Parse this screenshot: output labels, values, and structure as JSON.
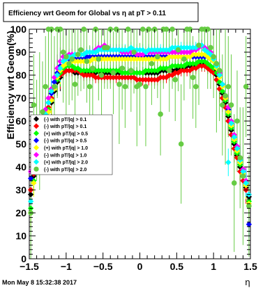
{
  "chart_data": {
    "type": "scatter",
    "title": "Efficiency wrt Geom for Global vs   η at pT > 0.11",
    "xlabel": "η",
    "ylabel": "Efficiency wrt Geom(%)",
    "xlim": [
      -1.5,
      1.5
    ],
    "ylim": [
      0,
      100
    ],
    "x_ticks": [
      "−1.5",
      "−1",
      "−0.5",
      "0",
      "0.5",
      "1",
      "1.5"
    ],
    "y_ticks": [
      "0",
      "10",
      "20",
      "30",
      "40",
      "50",
      "60",
      "70",
      "80",
      "90",
      "100"
    ],
    "grid": false,
    "legend_position": "center-left",
    "timestamp": "Mon May  8 15:32:38 2017",
    "series": [
      {
        "name": "(-) with pT/|q| > 0.1",
        "color": "#000000",
        "x": [
          -1.48,
          -1.44,
          -1.4,
          -1.36,
          -1.32,
          -1.28,
          -1.24,
          -1.2,
          -1.16,
          -1.12,
          -1.08,
          -1.04,
          -1,
          -0.96,
          -0.92,
          -0.88,
          -0.84,
          -0.8,
          -0.76,
          -0.72,
          -0.68,
          -0.64,
          -0.6,
          -0.56,
          -0.52,
          -0.48,
          -0.44,
          -0.4,
          -0.36,
          -0.32,
          -0.28,
          -0.24,
          -0.2,
          -0.16,
          -0.12,
          -0.08,
          -0.04,
          0,
          0.04,
          0.08,
          0.12,
          0.16,
          0.2,
          0.24,
          0.28,
          0.32,
          0.36,
          0.4,
          0.44,
          0.48,
          0.52,
          0.56,
          0.6,
          0.64,
          0.68,
          0.72,
          0.76,
          0.8,
          0.84,
          0.88,
          0.92,
          0.96,
          1,
          1.04,
          1.08,
          1.12,
          1.16,
          1.2,
          1.24,
          1.28,
          1.32,
          1.36,
          1.4,
          1.44,
          1.48
        ],
        "y": [
          28,
          36,
          45,
          52,
          56,
          60,
          64,
          68,
          73,
          77,
          79,
          81,
          82,
          82,
          82,
          81,
          81,
          81,
          81,
          81,
          81,
          81,
          81,
          82,
          81,
          81,
          81,
          81,
          81,
          81,
          81,
          81,
          81,
          81,
          81,
          81,
          81,
          81,
          81,
          81,
          81,
          81,
          81,
          81,
          82,
          82,
          82,
          82,
          82,
          82,
          83,
          83,
          83,
          84,
          84,
          84,
          84,
          85,
          85,
          85,
          84,
          83,
          82,
          80,
          76,
          72,
          68,
          62,
          56,
          50,
          45,
          40,
          36,
          31,
          27
        ]
      },
      {
        "name": "(-) with pT/|q| > 0.1",
        "color": "#ff0000",
        "x": [
          -1.48,
          -1.44,
          -1.4,
          -1.36,
          -1.32,
          -1.28,
          -1.24,
          -1.2,
          -1.16,
          -1.12,
          -1.08,
          -1.04,
          -1,
          -0.96,
          -0.92,
          -0.88,
          -0.84,
          -0.8,
          -0.76,
          -0.72,
          -0.68,
          -0.64,
          -0.6,
          -0.56,
          -0.52,
          -0.48,
          -0.44,
          -0.4,
          -0.36,
          -0.32,
          -0.28,
          -0.24,
          -0.2,
          -0.16,
          -0.12,
          -0.08,
          -0.04,
          0,
          0.04,
          0.08,
          0.12,
          0.16,
          0.2,
          0.24,
          0.28,
          0.32,
          0.36,
          0.4,
          0.44,
          0.48,
          0.52,
          0.56,
          0.6,
          0.64,
          0.68,
          0.72,
          0.76,
          0.8,
          0.84,
          0.88,
          0.92,
          0.96,
          1,
          1.04,
          1.08,
          1.12,
          1.16,
          1.2,
          1.24,
          1.28,
          1.32,
          1.36,
          1.4,
          1.44,
          1.48
        ],
        "y": [
          30,
          37,
          46,
          53,
          57,
          61,
          66,
          70,
          74,
          78,
          80,
          81,
          82,
          82,
          82,
          82,
          82,
          81,
          80,
          80,
          80,
          80,
          79,
          79,
          79,
          79,
          79,
          79,
          79,
          79,
          79,
          79,
          79,
          79,
          79,
          79,
          78,
          78,
          78,
          78,
          78,
          78,
          78,
          78,
          79,
          79,
          79,
          80,
          80,
          81,
          81,
          82,
          82,
          82,
          82,
          83,
          83,
          84,
          84,
          84,
          83,
          82,
          81,
          78,
          74,
          70,
          66,
          60,
          54,
          48,
          44,
          38,
          34,
          30,
          28
        ]
      },
      {
        "name": "(+) with pT/|q| > 0.5",
        "color": "#00ff00",
        "x": [
          -1.48,
          -1.44,
          -1.4,
          -1.36,
          -1.32,
          -1.28,
          -1.24,
          -1.2,
          -1.16,
          -1.12,
          -1.08,
          -1.04,
          -1,
          -0.96,
          -0.92,
          -0.88,
          -0.84,
          -0.8,
          -0.76,
          -0.72,
          -0.68,
          -0.64,
          -0.6,
          -0.56,
          -0.52,
          -0.48,
          -0.44,
          -0.4,
          -0.36,
          -0.32,
          -0.28,
          -0.24,
          -0.2,
          -0.16,
          -0.12,
          -0.08,
          -0.04,
          0,
          0.04,
          0.08,
          0.12,
          0.16,
          0.2,
          0.24,
          0.28,
          0.32,
          0.36,
          0.4,
          0.44,
          0.48,
          0.52,
          0.56,
          0.6,
          0.64,
          0.68,
          0.72,
          0.76,
          0.8,
          0.84,
          0.88,
          0.92,
          0.96,
          1,
          1.04,
          1.08,
          1.12,
          1.16,
          1.2,
          1.24,
          1.28,
          1.32,
          1.36,
          1.4,
          1.44,
          1.48
        ],
        "y": [
          22,
          34,
          44,
          50,
          55,
          60,
          65,
          69,
          74,
          78,
          81,
          83,
          84,
          84,
          84,
          83,
          83,
          82,
          82,
          82,
          82,
          82,
          82,
          82,
          82,
          82,
          82,
          82,
          82,
          82,
          82,
          81,
          81,
          81,
          81,
          81,
          81,
          81,
          81,
          82,
          82,
          82,
          82,
          82,
          83,
          83,
          83,
          83,
          84,
          84,
          84,
          84,
          84,
          85,
          85,
          85,
          85,
          86,
          86,
          86,
          85,
          84,
          83,
          81,
          77,
          73,
          69,
          63,
          57,
          51,
          46,
          41,
          37,
          32,
          25
        ]
      },
      {
        "name": "(-) with pT/|q| > 0.5",
        "color": "#0000ff",
        "x": [
          -1.48,
          -1.44,
          -1.4,
          -1.36,
          -1.32,
          -1.28,
          -1.24,
          -1.2,
          -1.16,
          -1.12,
          -1.08,
          -1.04,
          -1,
          -0.96,
          -0.92,
          -0.88,
          -0.84,
          -0.8,
          -0.76,
          -0.72,
          -0.68,
          -0.64,
          -0.6,
          -0.56,
          -0.52,
          -0.48,
          -0.44,
          -0.4,
          -0.36,
          -0.32,
          -0.28,
          -0.24,
          -0.2,
          -0.16,
          -0.12,
          -0.08,
          -0.04,
          0,
          0.04,
          0.08,
          0.12,
          0.16,
          0.2,
          0.24,
          0.28,
          0.32,
          0.36,
          0.4,
          0.44,
          0.48,
          0.52,
          0.56,
          0.6,
          0.64,
          0.68,
          0.72,
          0.76,
          0.8,
          0.84,
          0.88,
          0.92,
          0.96,
          1,
          1.04,
          1.08,
          1.12,
          1.16,
          1.2,
          1.24,
          1.28,
          1.32,
          1.36,
          1.4,
          1.44,
          1.48
        ],
        "y": [
          35,
          40,
          49,
          55,
          59,
          64,
          68,
          72,
          77,
          81,
          84,
          86,
          87,
          87,
          87,
          87,
          87,
          87,
          87,
          88,
          88,
          88,
          88,
          88,
          88,
          88,
          88,
          88,
          88,
          88,
          88,
          88,
          88,
          88,
          88,
          88,
          88,
          88,
          88,
          88,
          88,
          88,
          88,
          88,
          88,
          88,
          88,
          88,
          88,
          88,
          88,
          88,
          88,
          88,
          88,
          88,
          88,
          88,
          88,
          88,
          88,
          87,
          86,
          84,
          80,
          76,
          71,
          65,
          59,
          53,
          48,
          43,
          38,
          33,
          15
        ]
      },
      {
        "name": "(+) with pT/|q| > 1.0",
        "color": "#ffff00",
        "x": [
          -1.48,
          -1.44,
          -1.4,
          -1.36,
          -1.32,
          -1.28,
          -1.24,
          -1.2,
          -1.16,
          -1.12,
          -1.08,
          -1.04,
          -1,
          -0.96,
          -0.92,
          -0.88,
          -0.84,
          -0.8,
          -0.76,
          -0.72,
          -0.68,
          -0.64,
          -0.6,
          -0.56,
          -0.52,
          -0.48,
          -0.44,
          -0.4,
          -0.36,
          -0.32,
          -0.28,
          -0.24,
          -0.2,
          -0.16,
          -0.12,
          -0.08,
          -0.04,
          0,
          0.04,
          0.08,
          0.12,
          0.16,
          0.2,
          0.24,
          0.28,
          0.32,
          0.36,
          0.4,
          0.44,
          0.48,
          0.52,
          0.56,
          0.6,
          0.64,
          0.68,
          0.72,
          0.76,
          0.8,
          0.84,
          0.88,
          0.92,
          0.96,
          1,
          1.04,
          1.08,
          1.12,
          1.16,
          1.2,
          1.24,
          1.28,
          1.32,
          1.36,
          1.4,
          1.44,
          1.48
        ],
        "y": [
          20,
          33,
          42,
          49,
          54,
          59,
          64,
          69,
          74,
          79,
          82,
          84,
          85,
          85,
          86,
          86,
          86,
          86,
          86,
          86,
          86,
          87,
          87,
          87,
          87,
          87,
          87,
          87,
          87,
          87,
          87,
          87,
          87,
          87,
          87,
          87,
          87,
          87,
          87,
          87,
          87,
          87,
          87,
          87,
          87,
          87,
          87,
          88,
          88,
          88,
          88,
          88,
          88,
          88,
          88,
          89,
          89,
          89,
          89,
          89,
          88,
          87,
          86,
          83,
          79,
          75,
          70,
          64,
          58,
          52,
          47,
          42,
          37,
          32,
          24
        ]
      },
      {
        "name": "(-) with pT/|q| > 1.0",
        "color": "#ff00ff",
        "x": [
          -1.48,
          -1.44,
          -1.4,
          -1.36,
          -1.32,
          -1.28,
          -1.24,
          -1.2,
          -1.16,
          -1.12,
          -1.08,
          -1.04,
          -1,
          -0.96,
          -0.92,
          -0.88,
          -0.84,
          -0.8,
          -0.76,
          -0.72,
          -0.68,
          -0.64,
          -0.6,
          -0.56,
          -0.52,
          -0.48,
          -0.44,
          -0.4,
          -0.36,
          -0.32,
          -0.28,
          -0.24,
          -0.2,
          -0.16,
          -0.12,
          -0.08,
          -0.04,
          0,
          0.04,
          0.08,
          0.12,
          0.16,
          0.2,
          0.24,
          0.28,
          0.32,
          0.36,
          0.4,
          0.44,
          0.48,
          0.52,
          0.56,
          0.6,
          0.64,
          0.68,
          0.72,
          0.76,
          0.8,
          0.84,
          0.88,
          0.92,
          0.96,
          1,
          1.04,
          1.08,
          1.12,
          1.16,
          1.2,
          1.24,
          1.28,
          1.32,
          1.36,
          1.4,
          1.44,
          1.48
        ],
        "y": [
          38,
          44,
          50,
          56,
          60,
          65,
          70,
          74,
          79,
          83,
          86,
          88,
          88,
          89,
          89,
          89,
          89,
          89,
          89,
          90,
          90,
          90,
          91,
          92,
          92,
          93,
          92,
          91,
          91,
          91,
          91,
          90,
          90,
          90,
          90,
          90,
          89,
          89,
          89,
          90,
          90,
          90,
          90,
          90,
          90,
          90,
          90,
          90,
          90,
          90,
          90,
          90,
          90,
          90,
          90,
          91,
          91,
          92,
          93,
          92,
          91,
          90,
          88,
          85,
          81,
          76,
          71,
          66,
          60,
          54,
          49,
          44,
          39,
          34,
          28
        ]
      },
      {
        "name": "(+) with pT/|q| > 2.0",
        "color": "#00ffff",
        "x": [
          -1.48,
          -1.44,
          -1.4,
          -1.36,
          -1.32,
          -1.28,
          -1.24,
          -1.2,
          -1.16,
          -1.12,
          -1.08,
          -1.04,
          -1,
          -0.96,
          -0.92,
          -0.88,
          -0.84,
          -0.8,
          -0.76,
          -0.72,
          -0.68,
          -0.64,
          -0.6,
          -0.56,
          -0.52,
          -0.48,
          -0.44,
          -0.4,
          -0.36,
          -0.32,
          -0.28,
          -0.24,
          -0.2,
          -0.16,
          -0.12,
          -0.08,
          -0.04,
          0,
          0.04,
          0.08,
          0.12,
          0.16,
          0.2,
          0.24,
          0.28,
          0.32,
          0.36,
          0.4,
          0.44,
          0.48,
          0.52,
          0.56,
          0.6,
          0.64,
          0.68,
          0.72,
          0.76,
          0.8,
          0.84,
          0.88,
          0.92,
          0.96,
          1,
          1.04,
          1.08,
          1.12,
          1.16,
          1.2,
          1.24,
          1.28,
          1.32,
          1.36,
          1.4,
          1.44,
          1.48
        ],
        "y": [
          25,
          38,
          47,
          54,
          59,
          63,
          68,
          73,
          75,
          80,
          83,
          86,
          87,
          88,
          88,
          89,
          89,
          89,
          89,
          90,
          90,
          90,
          90,
          91,
          91,
          91,
          91,
          91,
          91,
          91,
          91,
          91,
          91,
          91,
          92,
          91,
          91,
          91,
          91,
          90,
          91,
          91,
          91,
          91,
          91,
          91,
          91,
          91,
          92,
          92,
          92,
          92,
          92,
          92,
          92,
          92,
          92,
          93,
          93,
          91,
          90,
          89,
          87,
          84,
          80,
          76,
          71,
          42,
          59,
          53,
          48,
          43,
          38,
          33,
          28
        ]
      },
      {
        "name": "(-) with pT/|q| > 2.0",
        "color": "#66cc44",
        "x": [
          -1.48,
          -1.44,
          -1.4,
          -1.36,
          -1.32,
          -1.28,
          -1.24,
          -1.2,
          -1.16,
          -1.12,
          -1.08,
          -1.04,
          -1,
          -0.96,
          -0.92,
          -0.88,
          -0.84,
          -0.8,
          -0.76,
          -0.72,
          -0.68,
          -0.64,
          -0.6,
          -0.56,
          -0.52,
          -0.48,
          -0.44,
          -0.4,
          -0.36,
          -0.32,
          -0.28,
          -0.24,
          -0.2,
          -0.16,
          -0.12,
          -0.08,
          -0.04,
          0,
          0.04,
          0.08,
          0.12,
          0.16,
          0.2,
          0.24,
          0.28,
          0.32,
          0.36,
          0.4,
          0.44,
          0.48,
          0.52,
          0.56,
          0.6,
          0.64,
          0.68,
          0.72,
          0.76,
          0.8,
          0.84,
          0.88,
          0.92,
          0.96,
          1,
          1.04,
          1.08,
          1.12,
          1.16,
          1.2,
          1.24,
          1.28,
          1.32,
          1.36,
          1.4,
          1.44,
          1.48
        ],
        "y": [
          20,
          67,
          56,
          60,
          64,
          75,
          100,
          100,
          75,
          100,
          100,
          90,
          88,
          85,
          87,
          76,
          89,
          91,
          100,
          86,
          75,
          83,
          100,
          87,
          80,
          92,
          92,
          100,
          81,
          100,
          76,
          83,
          75,
          100,
          82,
          90,
          75,
          76,
          100,
          75,
          100,
          85,
          100,
          88,
          63,
          100,
          100,
          82,
          100,
          78,
          91,
          50,
          87,
          100,
          100,
          79,
          75,
          93,
          100,
          100,
          100,
          92,
          88,
          85,
          82,
          67,
          71,
          75,
          67,
          33,
          60,
          44,
          36,
          75,
          23
        ]
      }
    ]
  }
}
